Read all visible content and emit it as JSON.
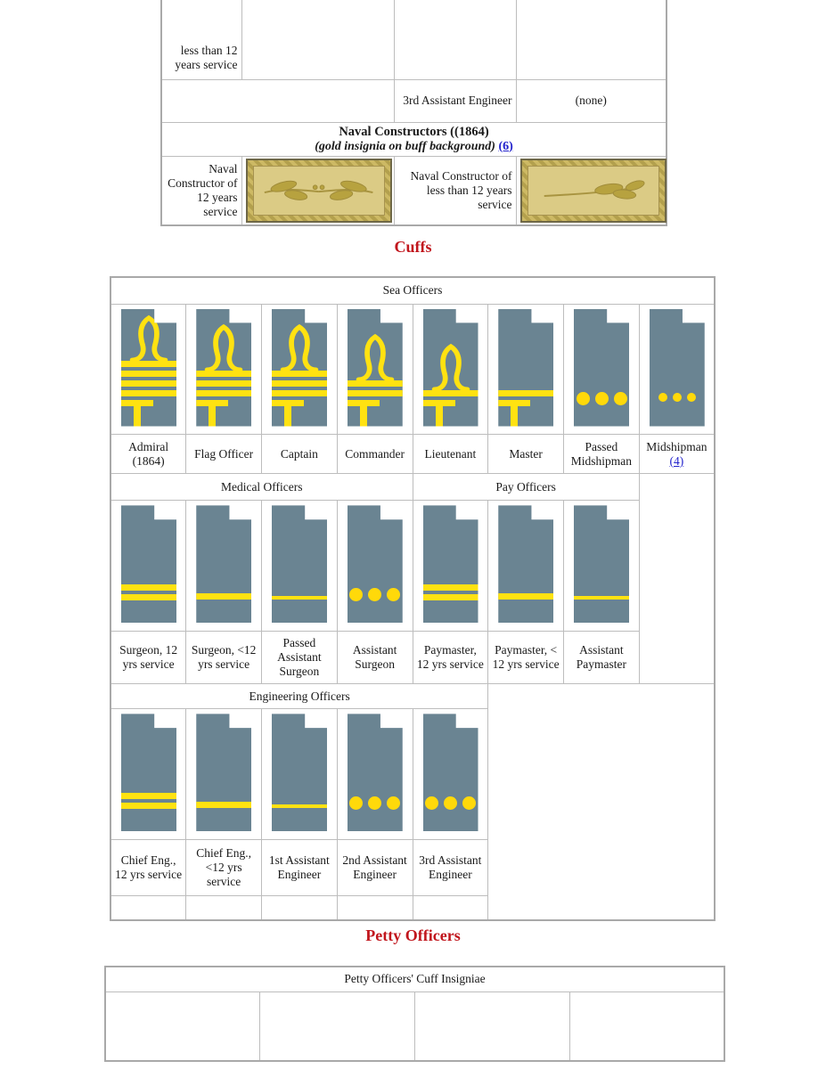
{
  "colors": {
    "cuff_slate": "#6a8492",
    "stripe_yellow": "#ffe211",
    "dot_yellow": "#ffd90a",
    "heading_red": "#c1161d",
    "link_blue": "#2222cc",
    "buff_field": "#dbcb85",
    "buff_frame": "#b3a04d"
  },
  "top_table": {
    "cut_row_label": "less than 12 years service",
    "row2": {
      "rank": "3rd Assistant Engineer",
      "device": "(none)"
    },
    "constructors_header": {
      "title": "Naval Constructors ((1864)",
      "subtitle": "(gold insignia on buff background)",
      "note_link": "(6)"
    },
    "row4": {
      "left_label": "Naval Constructor of 12 years service",
      "left_insignia": "crossed-gold-sprigs-on-buff",
      "right_label": "Naval Constructor of less than 12 years service",
      "right_insignia": "single-gold-sprig-on-buff"
    }
  },
  "cuffs_heading": "Cuffs",
  "sea": {
    "header": "Sea Officers",
    "items": [
      {
        "label": "Admiral (1864)",
        "cuff": {
          "sea": true,
          "stripes": 4,
          "loop": true,
          "bar": true
        }
      },
      {
        "label": "Flag Officer",
        "cuff": {
          "sea": true,
          "stripes": 3,
          "loop": true,
          "bar": true
        }
      },
      {
        "label": "Captain",
        "cuff": {
          "sea": true,
          "stripes": 3,
          "loop": true,
          "bar": true
        }
      },
      {
        "label": "Commander",
        "cuff": {
          "sea": true,
          "stripes": 2,
          "loop": true,
          "bar": true
        }
      },
      {
        "label": "Lieutenant",
        "cuff": {
          "sea": true,
          "stripes": 1,
          "loop": true,
          "bar": true
        }
      },
      {
        "label": "Master",
        "cuff": {
          "sea": true,
          "stripes": 1,
          "bar": true
        }
      },
      {
        "label": "Passed Midshipman",
        "cuff": {
          "dots": "large"
        }
      },
      {
        "label": "Midshipman",
        "note_link": "(4)",
        "cuff": {
          "dots": "small"
        }
      }
    ]
  },
  "medical": {
    "header": "Medical Officers",
    "items": [
      {
        "label": "Surgeon, 12 yrs service",
        "cuff": {
          "stripes": 2
        }
      },
      {
        "label": "Surgeon, <12 yrs service",
        "cuff": {
          "stripes": 1
        }
      },
      {
        "label": "Passed Assistant Surgeon",
        "cuff": {
          "stripes": 1,
          "thin": true
        }
      },
      {
        "label": "Assistant Surgeon",
        "cuff": {
          "dots": "large"
        }
      }
    ]
  },
  "pay": {
    "header": "Pay Officers",
    "items": [
      {
        "label": "Paymaster, 12 yrs service",
        "cuff": {
          "stripes": 2
        }
      },
      {
        "label": "Paymaster, < 12 yrs service",
        "cuff": {
          "stripes": 1
        }
      },
      {
        "label": "Assistant Paymaster",
        "cuff": {
          "stripes": 1,
          "thin": true
        }
      }
    ]
  },
  "engineering": {
    "header": "Engineering Officers",
    "items": [
      {
        "label": "Chief Eng., 12 yrs service",
        "cuff": {
          "stripes": 2
        }
      },
      {
        "label": "Chief Eng., <12 yrs service",
        "cuff": {
          "stripes": 1
        }
      },
      {
        "label": "1st Assistant Engineer",
        "cuff": {
          "stripes": 1,
          "thin": true
        }
      },
      {
        "label": "2nd Assistant Engineer",
        "cuff": {
          "dots": "large"
        }
      },
      {
        "label": "3rd Assistant Engineer",
        "cuff": {
          "dots": "large"
        }
      }
    ]
  },
  "petty_heading": "Petty Officers",
  "petty_table": {
    "header": "Petty Officers' Cuff Insigniae"
  }
}
